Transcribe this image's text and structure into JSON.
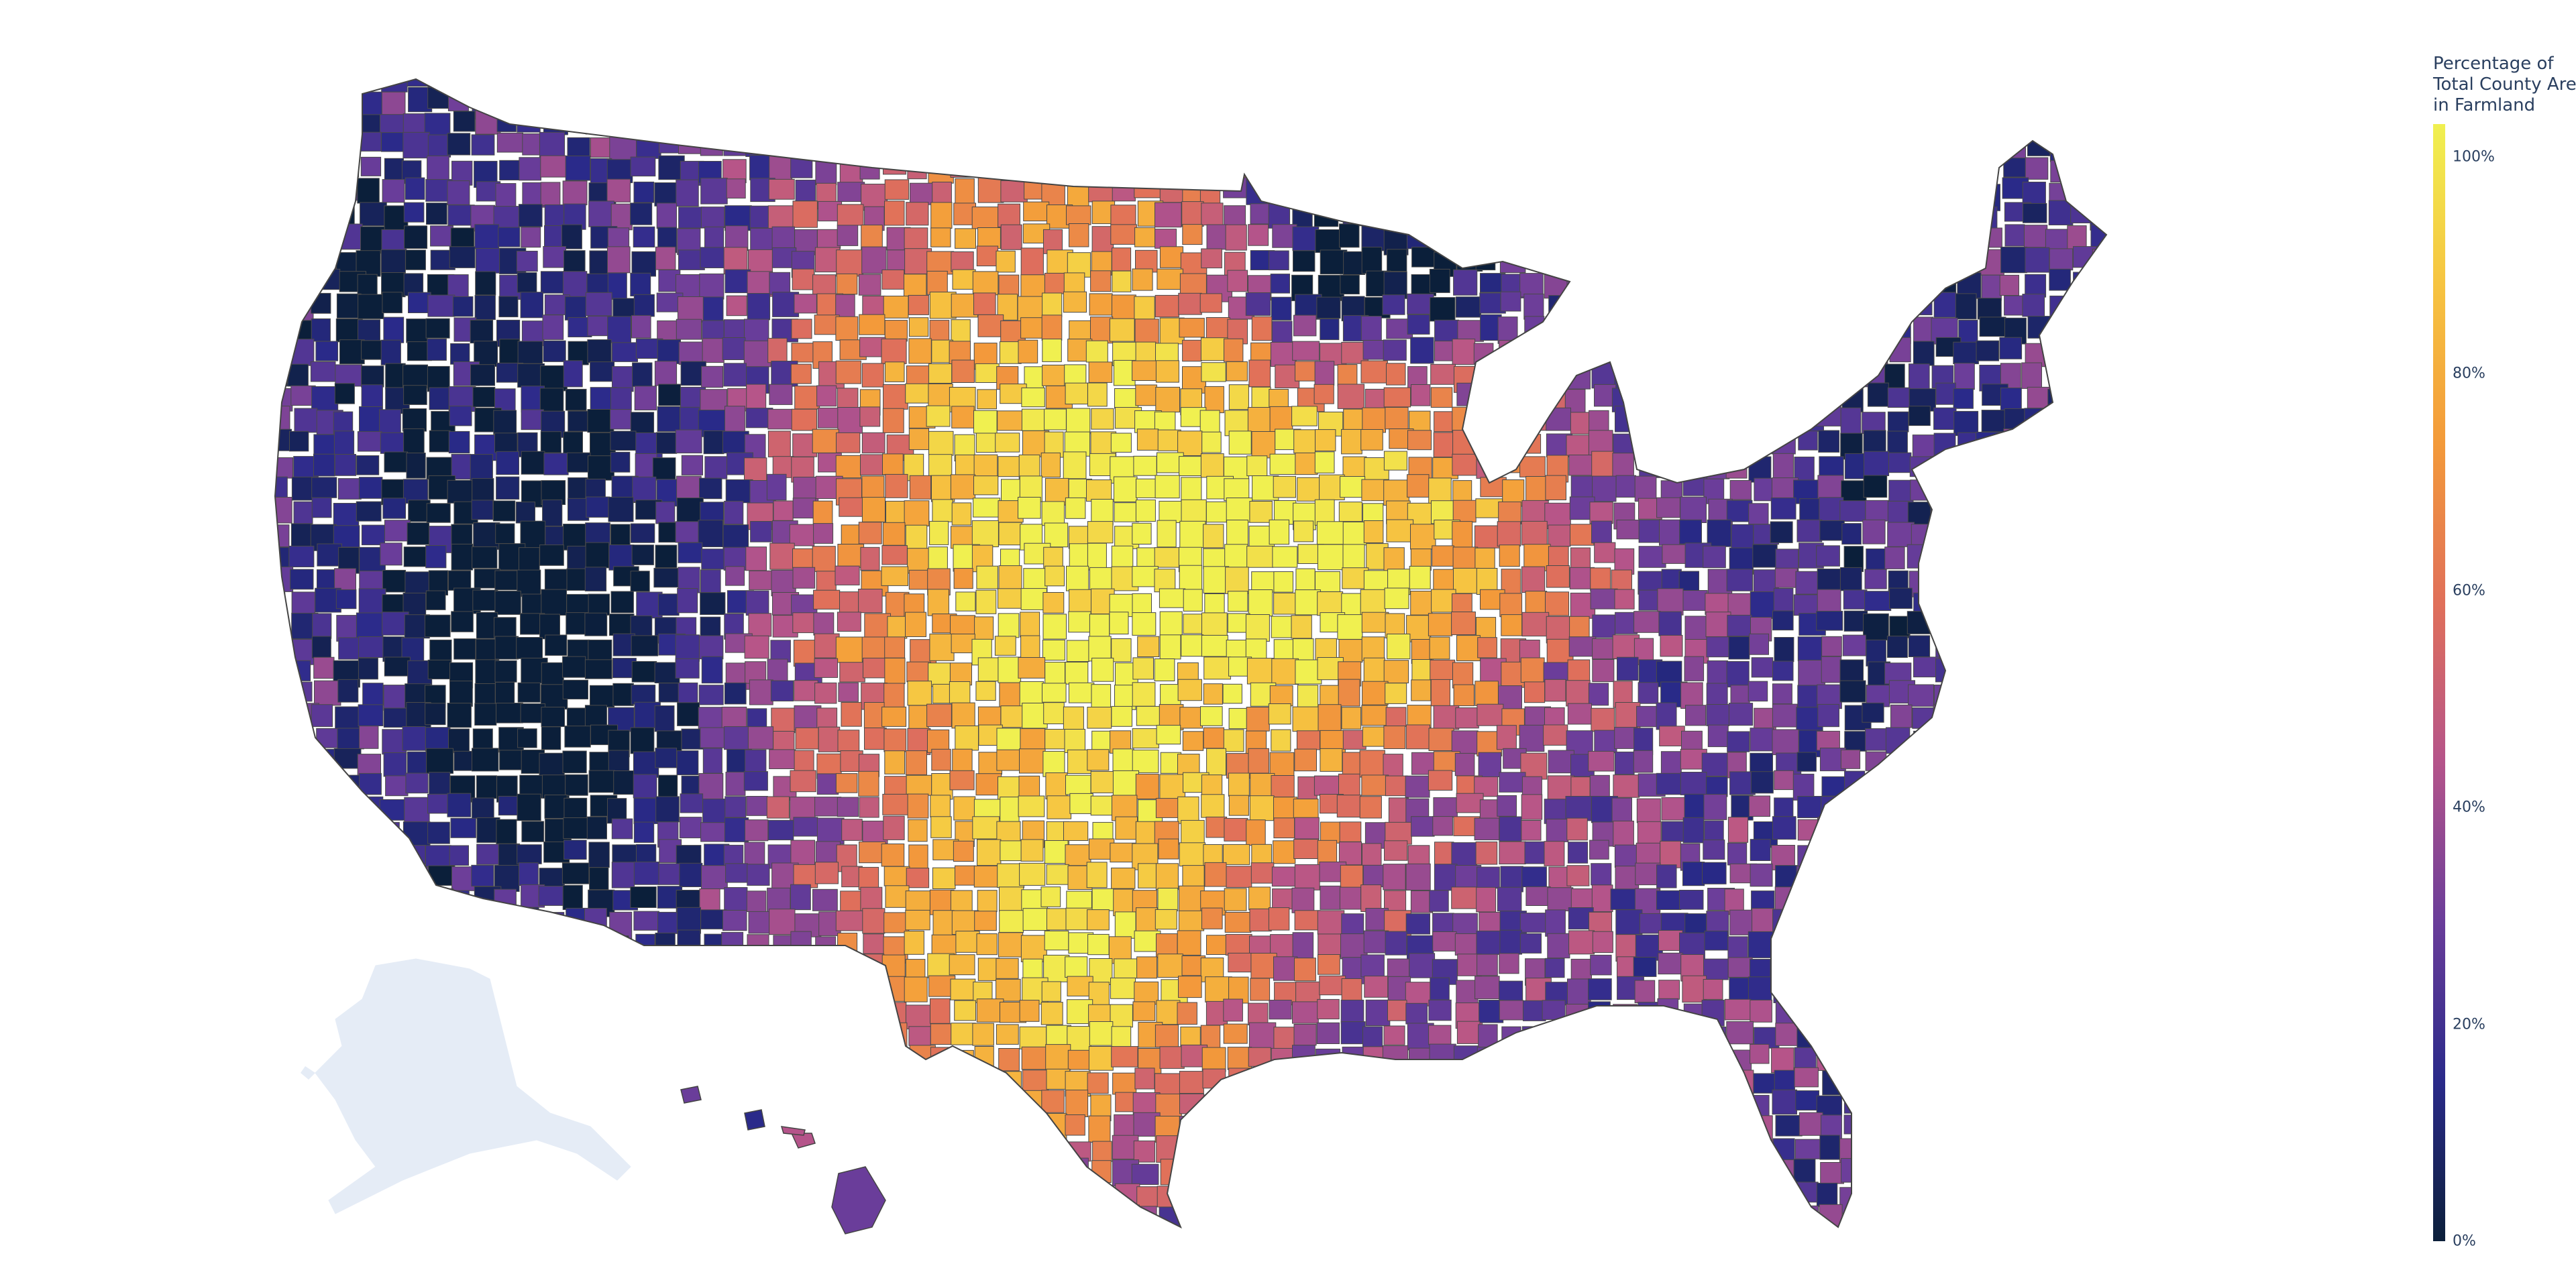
{
  "map": {
    "type": "choropleth",
    "region": "United States counties",
    "colorscale_name": "plasma",
    "colorscale": [
      "#0b1f3a",
      "#2a2a8a",
      "#6a3d9a",
      "#b5548a",
      "#e0705a",
      "#f39a3a",
      "#f6c441",
      "#f0f050"
    ],
    "missing_color": "#e5ecf6"
  },
  "colorbar": {
    "title_lines": [
      "Percentage of",
      "Total County Area",
      "in Farmland"
    ],
    "range": [
      0,
      103
    ],
    "ticks": [
      {
        "value": 0,
        "label": "0%"
      },
      {
        "value": 20,
        "label": "20%"
      },
      {
        "value": 40,
        "label": "40%"
      },
      {
        "value": 60,
        "label": "60%"
      },
      {
        "value": 80,
        "label": "80%"
      },
      {
        "value": 100,
        "label": "100%"
      }
    ]
  }
}
